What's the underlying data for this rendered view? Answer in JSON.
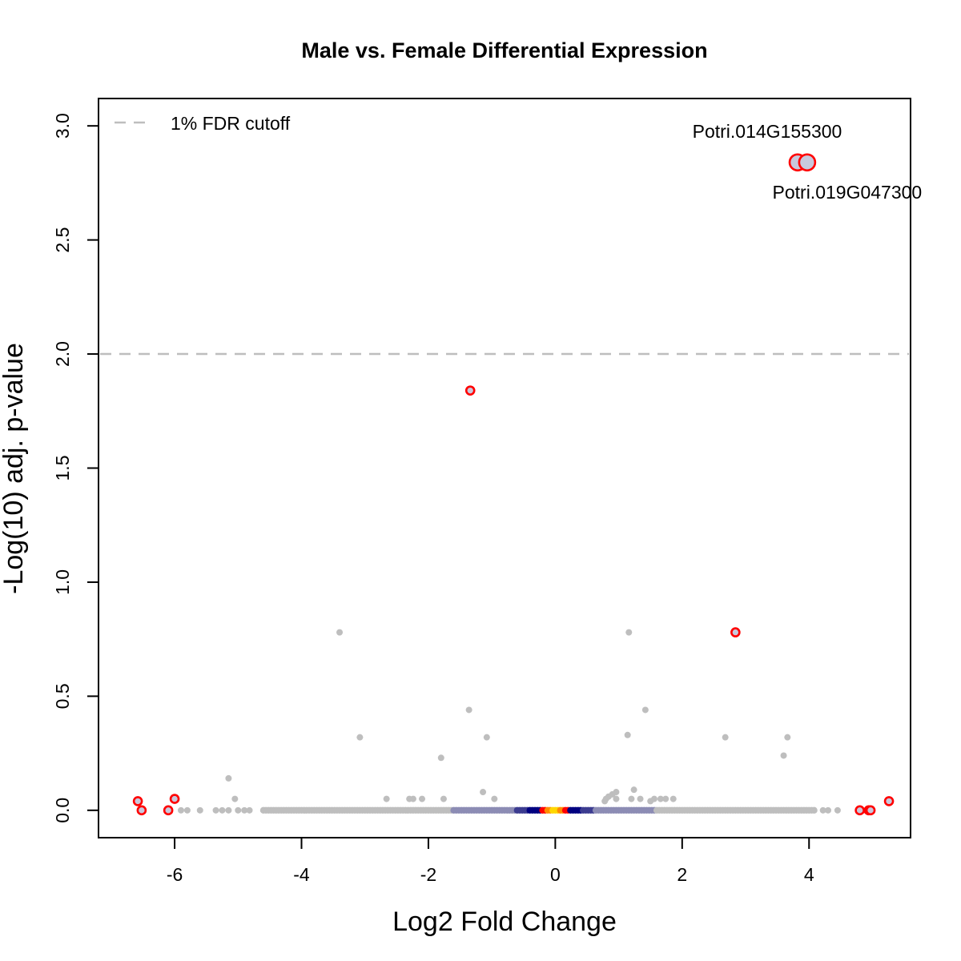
{
  "chart_data": {
    "type": "scatter",
    "title": "Male vs. Female Differential Expression",
    "xlabel": "Log2 Fold Change",
    "ylabel": "-Log(10) adj. p-value",
    "xlim": [
      -7.2,
      5.6
    ],
    "ylim": [
      -0.12,
      3.12
    ],
    "xticks": [
      -6,
      -4,
      -2,
      0,
      2,
      4
    ],
    "yticks": [
      0.0,
      0.5,
      1.0,
      1.5,
      2.0,
      2.5,
      3.0
    ],
    "ytick_labels": [
      "0.0",
      "0.5",
      "1.0",
      "1.5",
      "2.0",
      "2.5",
      "3.0"
    ],
    "grid": false,
    "legend": {
      "position": "top-left",
      "entries": [
        {
          "label": "1% FDR cutoff",
          "style": "dashed",
          "color": "#bebebe"
        }
      ]
    },
    "fdr_cutoff": 2.0,
    "colors": {
      "background_points": "#bebebe",
      "dense_low": "#8c8cb4",
      "dense_mid": "#3c3c90",
      "dense_core": "#000080",
      "dense_red": "#ff0000",
      "dense_orange": "#ff8c00",
      "dense_yellow": "#ffd700",
      "highlight_stroke": "#ff0000",
      "highlight_fill": "#c8c8dc",
      "cutoff_line": "#bebebe"
    },
    "background_points": [
      {
        "x": -3.4,
        "y": 0.78
      },
      {
        "x": -3.08,
        "y": 0.32
      },
      {
        "x": -1.36,
        "y": 0.44
      },
      {
        "x": -1.08,
        "y": 0.32
      },
      {
        "x": -1.8,
        "y": 0.23
      },
      {
        "x": -5.15,
        "y": 0.14
      },
      {
        "x": -1.14,
        "y": 0.08
      },
      {
        "x": -5.05,
        "y": 0.05
      },
      {
        "x": -2.66,
        "y": 0.05
      },
      {
        "x": -2.3,
        "y": 0.05
      },
      {
        "x": -2.24,
        "y": 0.05
      },
      {
        "x": -2.1,
        "y": 0.05
      },
      {
        "x": -1.76,
        "y": 0.05
      },
      {
        "x": -0.96,
        "y": 0.05
      },
      {
        "x": 1.16,
        "y": 0.78
      },
      {
        "x": 1.42,
        "y": 0.44
      },
      {
        "x": 1.14,
        "y": 0.33
      },
      {
        "x": 2.68,
        "y": 0.32
      },
      {
        "x": 3.66,
        "y": 0.32
      },
      {
        "x": 3.6,
        "y": 0.24
      },
      {
        "x": 1.24,
        "y": 0.09
      },
      {
        "x": 0.96,
        "y": 0.08
      },
      {
        "x": 0.9,
        "y": 0.07
      },
      {
        "x": 0.84,
        "y": 0.06
      },
      {
        "x": 0.8,
        "y": 0.05
      },
      {
        "x": 0.78,
        "y": 0.04
      },
      {
        "x": 0.96,
        "y": 0.05
      },
      {
        "x": 1.2,
        "y": 0.05
      },
      {
        "x": 1.34,
        "y": 0.05
      },
      {
        "x": 1.5,
        "y": 0.04
      },
      {
        "x": 1.56,
        "y": 0.05
      },
      {
        "x": 1.66,
        "y": 0.05
      },
      {
        "x": 1.74,
        "y": 0.05
      },
      {
        "x": 1.86,
        "y": 0.05
      },
      {
        "x": -5.9,
        "y": 0.0
      },
      {
        "x": -5.8,
        "y": 0.0
      },
      {
        "x": -5.6,
        "y": 0.0
      },
      {
        "x": -5.35,
        "y": 0.0
      },
      {
        "x": -5.25,
        "y": 0.0
      },
      {
        "x": -5.15,
        "y": 0.0
      },
      {
        "x": -5.0,
        "y": 0.0
      },
      {
        "x": -4.9,
        "y": 0.0
      },
      {
        "x": -4.82,
        "y": 0.0
      },
      {
        "x": 4.22,
        "y": 0.0
      },
      {
        "x": 4.3,
        "y": 0.0
      },
      {
        "x": 4.45,
        "y": 0.0
      }
    ],
    "dense_band": {
      "y": 0.0,
      "x_range": [
        -4.6,
        4.1
      ]
    },
    "highlighted_points": [
      {
        "x": -1.34,
        "y": 1.84
      },
      {
        "x": 2.84,
        "y": 0.78
      },
      {
        "x": -6.58,
        "y": 0.04
      },
      {
        "x": -6.0,
        "y": 0.05
      },
      {
        "x": -6.52,
        "y": 0.0
      },
      {
        "x": -6.1,
        "y": 0.0
      },
      {
        "x": 4.8,
        "y": 0.0
      },
      {
        "x": 4.94,
        "y": 0.0
      },
      {
        "x": 4.97,
        "y": 0.0
      },
      {
        "x": 5.26,
        "y": 0.04
      }
    ],
    "labeled_points": [
      {
        "x": 3.82,
        "y": 2.84,
        "label": "Potri.014G155300",
        "label_pos": "above"
      },
      {
        "x": 3.97,
        "y": 2.84,
        "label": "Potri.019G047300",
        "label_pos": "below"
      }
    ]
  }
}
